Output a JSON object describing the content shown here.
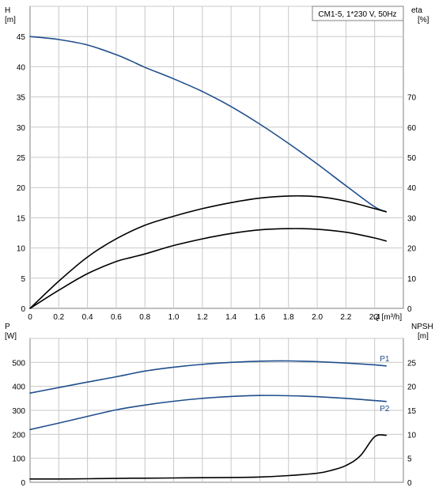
{
  "chart_data": [
    {
      "type": "line",
      "title": "CM1-5, 1*230 V, 50Hz",
      "ylabel_left": [
        "H",
        "[m]"
      ],
      "ylabel_right": [
        "eta",
        "[%]"
      ],
      "xlabel": "Q [m³/h]",
      "xlim": [
        0,
        2.6
      ],
      "ylim": [
        0,
        50
      ],
      "ylim_right": [
        0,
        100
      ],
      "x_ticks": [
        "0",
        "0.2",
        "0.4",
        "0.6",
        "0.8",
        "1.0",
        "1.2",
        "1.4",
        "1.6",
        "1.8",
        "2.0",
        "2.2",
        "2.4"
      ],
      "y_ticks_left": [
        "0",
        "5",
        "10",
        "15",
        "20",
        "25",
        "30",
        "35",
        "40",
        "45"
      ],
      "y_ticks_right": [
        "0",
        "10",
        "20",
        "30",
        "40",
        "50",
        "60",
        "70"
      ],
      "grid": true,
      "series": [
        {
          "color": "#1f4e8c",
          "axis": "left",
          "x": [
            0,
            0.2,
            0.4,
            0.6,
            0.7,
            0.8,
            1.0,
            1.2,
            1.4,
            1.6,
            1.8,
            2.0,
            2.2,
            2.4,
            2.48
          ],
          "y": [
            45,
            44.5,
            43.6,
            42.0,
            41.0,
            39.9,
            38.0,
            35.9,
            33.4,
            30.5,
            27.3,
            23.9,
            20.3,
            16.8,
            16.0
          ]
        },
        {
          "color": "#000000",
          "axis": "right",
          "x": [
            0,
            0.2,
            0.4,
            0.6,
            0.8,
            1.0,
            1.2,
            1.4,
            1.6,
            1.8,
            2.0,
            2.2,
            2.4,
            2.48
          ],
          "y": [
            0,
            9,
            17,
            23,
            27.5,
            30.5,
            33,
            35,
            36.5,
            37.2,
            37,
            35.5,
            33,
            32
          ]
        },
        {
          "color": "#000000",
          "axis": "right",
          "x": [
            0,
            0.2,
            0.4,
            0.6,
            0.7,
            0.8,
            1.0,
            1.2,
            1.4,
            1.6,
            1.8,
            2.0,
            2.2,
            2.4,
            2.48
          ],
          "y": [
            0,
            6,
            11.5,
            15.5,
            16.8,
            18,
            20.8,
            23,
            24.8,
            26,
            26.4,
            26.2,
            25.2,
            23.3,
            22.3
          ]
        }
      ]
    },
    {
      "type": "line",
      "ylabel_left": [
        "P",
        "[W]"
      ],
      "ylabel_right": [
        "NPSH",
        "[m]"
      ],
      "xlim": [
        0,
        2.6
      ],
      "ylim": [
        0,
        600
      ],
      "ylim_right": [
        0,
        30
      ],
      "y_ticks_left": [
        "0",
        "100",
        "200",
        "300",
        "400",
        "500"
      ],
      "y_ticks_right": [
        "0",
        "5",
        "10",
        "15",
        "20",
        "25"
      ],
      "grid": true,
      "series": [
        {
          "name": "P1",
          "color": "#1f4e8c",
          "axis": "left",
          "x": [
            0,
            0.2,
            0.4,
            0.6,
            0.7,
            0.8,
            1.0,
            1.2,
            1.4,
            1.6,
            1.8,
            2.0,
            2.2,
            2.4,
            2.48
          ],
          "y": [
            372,
            395,
            418,
            440,
            452,
            464,
            480,
            492,
            500,
            505,
            506,
            503,
            497,
            490,
            485
          ]
        },
        {
          "name": "P2",
          "color": "#1f4e8c",
          "axis": "left",
          "x": [
            0,
            0.2,
            0.4,
            0.6,
            0.8,
            1.0,
            1.2,
            1.4,
            1.6,
            1.8,
            2.0,
            2.2,
            2.4,
            2.48
          ],
          "y": [
            220,
            247,
            275,
            302,
            322,
            338,
            350,
            358,
            362,
            361,
            357,
            350,
            341,
            337
          ]
        },
        {
          "color": "#000000",
          "axis": "right",
          "x": [
            0,
            0.2,
            0.4,
            0.6,
            0.7,
            0.8,
            1.0,
            1.2,
            1.4,
            1.6,
            1.8,
            2.0,
            2.1,
            2.2,
            2.3,
            2.4,
            2.48
          ],
          "y": [
            0.7,
            0.7,
            0.75,
            0.8,
            0.85,
            0.85,
            0.9,
            0.95,
            1.0,
            1.1,
            1.4,
            1.9,
            2.5,
            3.5,
            5.5,
            9.5,
            9.8
          ]
        }
      ]
    }
  ]
}
